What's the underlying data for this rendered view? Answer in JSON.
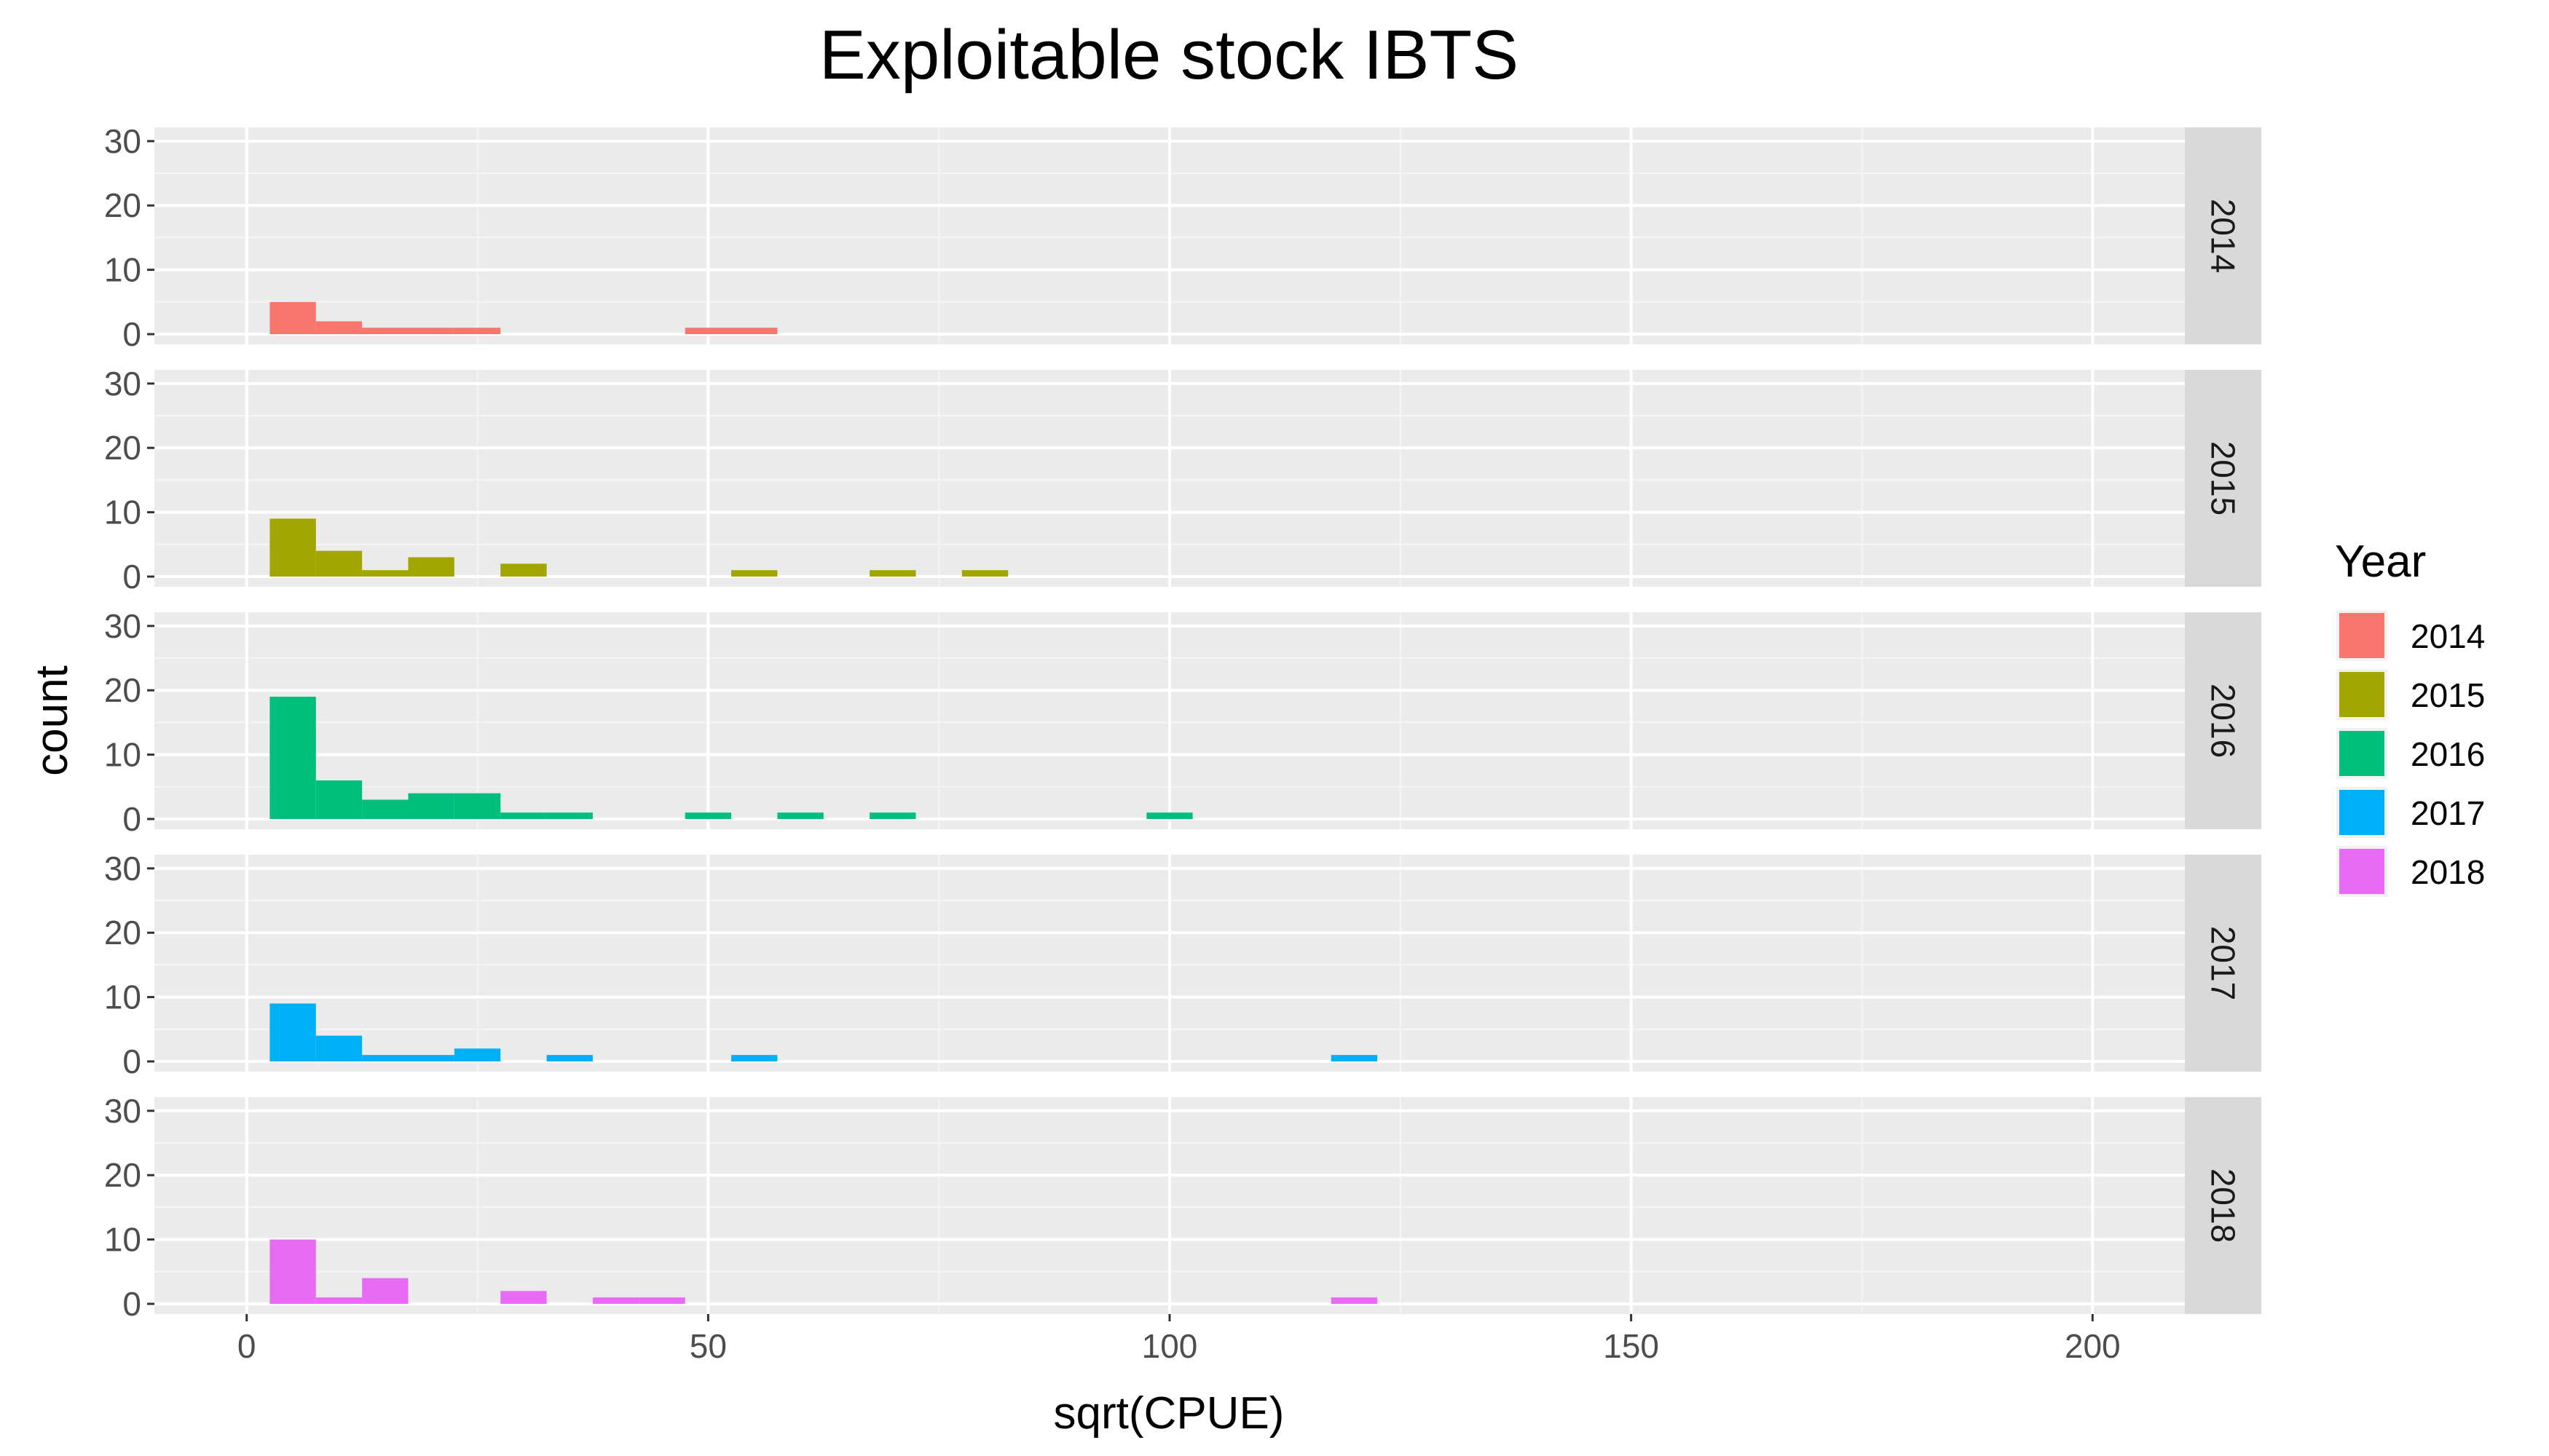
{
  "chart_data": {
    "type": "bar",
    "title": "Exploitable stock IBTS",
    "xlabel": "sqrt(CPUE)",
    "ylabel": "count",
    "xlim": [
      -10,
      210
    ],
    "ylim": [
      0,
      31
    ],
    "x_ticks": [
      0,
      50,
      100,
      150,
      200
    ],
    "y_ticks": [
      0,
      10,
      20,
      30
    ],
    "bin_width": 5,
    "grid": true,
    "legend": {
      "title": "Year",
      "position": "right"
    },
    "facets": [
      {
        "label": "2014",
        "color": "#F8766D",
        "bars": [
          {
            "x": 5,
            "count": 5
          },
          {
            "x": 10,
            "count": 2
          },
          {
            "x": 15,
            "count": 1
          },
          {
            "x": 20,
            "count": 1
          },
          {
            "x": 25,
            "count": 1
          },
          {
            "x": 50,
            "count": 1
          },
          {
            "x": 55,
            "count": 1
          }
        ]
      },
      {
        "label": "2015",
        "color": "#A3A500",
        "bars": [
          {
            "x": 5,
            "count": 9
          },
          {
            "x": 10,
            "count": 4
          },
          {
            "x": 15,
            "count": 1
          },
          {
            "x": 20,
            "count": 3
          },
          {
            "x": 30,
            "count": 2
          },
          {
            "x": 55,
            "count": 1
          },
          {
            "x": 70,
            "count": 1
          },
          {
            "x": 80,
            "count": 1
          }
        ]
      },
      {
        "label": "2016",
        "color": "#00BF7D",
        "bars": [
          {
            "x": 5,
            "count": 19
          },
          {
            "x": 10,
            "count": 6
          },
          {
            "x": 15,
            "count": 3
          },
          {
            "x": 20,
            "count": 4
          },
          {
            "x": 25,
            "count": 4
          },
          {
            "x": 30,
            "count": 1
          },
          {
            "x": 35,
            "count": 1
          },
          {
            "x": 50,
            "count": 1
          },
          {
            "x": 60,
            "count": 1
          },
          {
            "x": 70,
            "count": 1
          },
          {
            "x": 100,
            "count": 1
          }
        ]
      },
      {
        "label": "2017",
        "color": "#00B0F6",
        "bars": [
          {
            "x": 5,
            "count": 9
          },
          {
            "x": 10,
            "count": 4
          },
          {
            "x": 15,
            "count": 1
          },
          {
            "x": 20,
            "count": 1
          },
          {
            "x": 25,
            "count": 2
          },
          {
            "x": 35,
            "count": 1
          },
          {
            "x": 55,
            "count": 1
          },
          {
            "x": 120,
            "count": 1
          }
        ]
      },
      {
        "label": "2018",
        "color": "#E76BF3",
        "bars": [
          {
            "x": 5,
            "count": 10
          },
          {
            "x": 10,
            "count": 1
          },
          {
            "x": 15,
            "count": 4
          },
          {
            "x": 30,
            "count": 2
          },
          {
            "x": 40,
            "count": 1
          },
          {
            "x": 45,
            "count": 1
          },
          {
            "x": 120,
            "count": 1
          }
        ]
      }
    ]
  }
}
